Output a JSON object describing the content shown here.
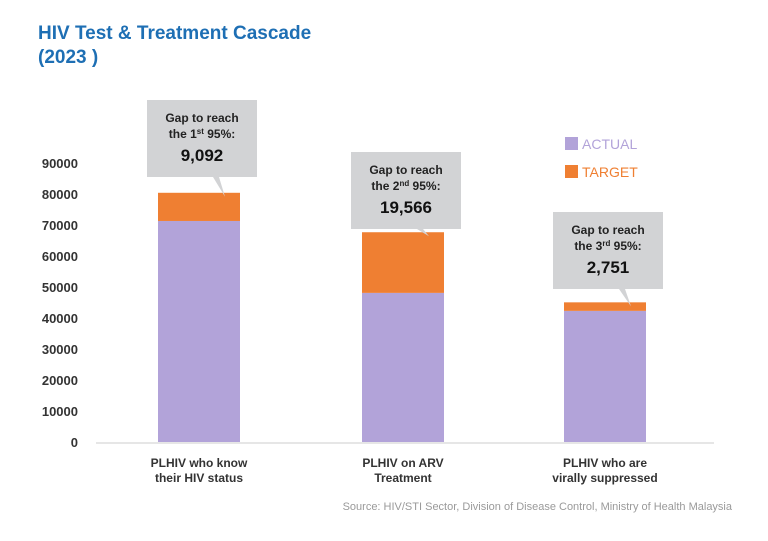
{
  "title_line1": "HIV Test & Treatment Cascade",
  "title_line2": "(2023 )",
  "source": "Source: HIV/STI Sector, Division of Disease Control, Ministry of Health Malaysia",
  "chart_data": {
    "type": "bar",
    "stacked": true,
    "categories": [
      [
        "PLHIV who know",
        "their HIV status"
      ],
      [
        "PLHIV on ARV",
        "Treatment"
      ],
      [
        "PLHIV who are",
        "virally suppressed"
      ]
    ],
    "series": [
      {
        "name": "ACTUAL",
        "color": "#b2a3d9",
        "values": [
          71300,
          48100,
          42300
        ]
      },
      {
        "name": "TARGET",
        "color": "#ef7f32",
        "values": [
          9092,
          19566,
          2751
        ]
      }
    ],
    "ylim": [
      0,
      90000
    ],
    "yticks": [
      "0",
      "10000",
      "20000",
      "30000",
      "40000",
      "50000",
      "60000",
      "70000",
      "80000",
      "90000"
    ],
    "grid": false,
    "legend": "top-right",
    "annotations": [
      {
        "line1": "Gap to reach",
        "prefix": "the ",
        "ordinal": "1",
        "sup": "st",
        "suffix": " 95%:",
        "value": "9,092"
      },
      {
        "line1": "Gap to reach",
        "prefix": "the ",
        "ordinal": "2",
        "sup": "nd",
        "suffix": " 95%:",
        "value": "19,566"
      },
      {
        "line1": "Gap to reach",
        "prefix": "the ",
        "ordinal": "3",
        "sup": "rd",
        "suffix": " 95%:",
        "value": "2,751"
      }
    ],
    "callout_color": "#d2d3d5"
  }
}
